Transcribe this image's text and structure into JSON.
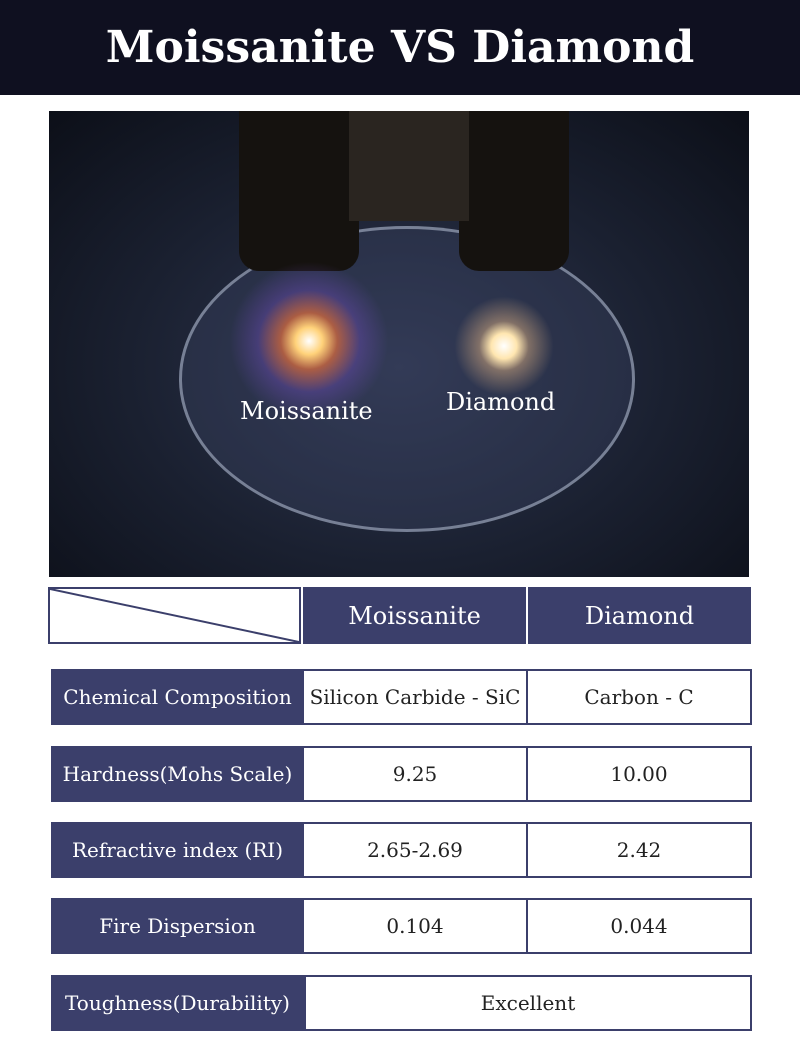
{
  "title": "Moissanite VS Diamond",
  "photo": {
    "label_left": "Moissanite",
    "label_right": "Diamond"
  },
  "table": {
    "headers": [
      "Moissanite",
      "Diamond"
    ],
    "rows": [
      {
        "label": "Chemical Composition",
        "moissanite": "Silicon Carbide - SiC",
        "diamond": "Carbon - C"
      },
      {
        "label": "Hardness(Mohs Scale)",
        "moissanite": "9.25",
        "diamond": "10.00"
      },
      {
        "label": "Refractive index (RI)",
        "moissanite": "2.65-2.69",
        "diamond": "2.42"
      },
      {
        "label": "Fire Dispersion",
        "moissanite": "0.104",
        "diamond": "0.044"
      },
      {
        "label": "Toughness(Durability)",
        "shared": "Excellent"
      }
    ]
  },
  "colors": {
    "header_bg": "#0f1020",
    "accent": "#3b3f6b"
  }
}
